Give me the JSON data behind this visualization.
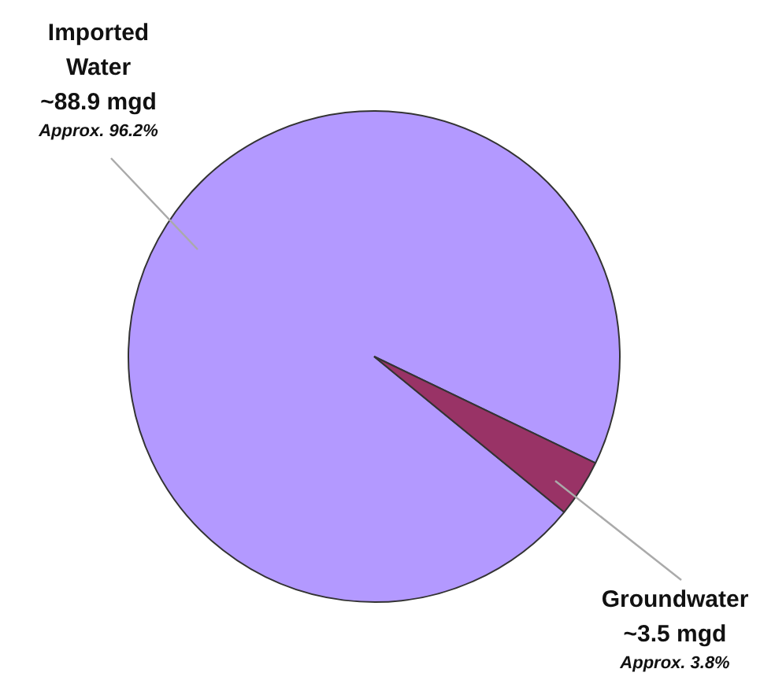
{
  "chart_data": {
    "type": "pie",
    "categories": [
      "Imported Water",
      "Groundwater"
    ],
    "values": [
      88.9,
      3.5
    ],
    "colors": [
      "#b399ff",
      "#993366"
    ],
    "value_labels": [
      "~88.9 mgd",
      "~3.5 mgd"
    ],
    "annotations": [
      "Approx. 96.2%",
      "Approx. 3.8%"
    ]
  }
}
